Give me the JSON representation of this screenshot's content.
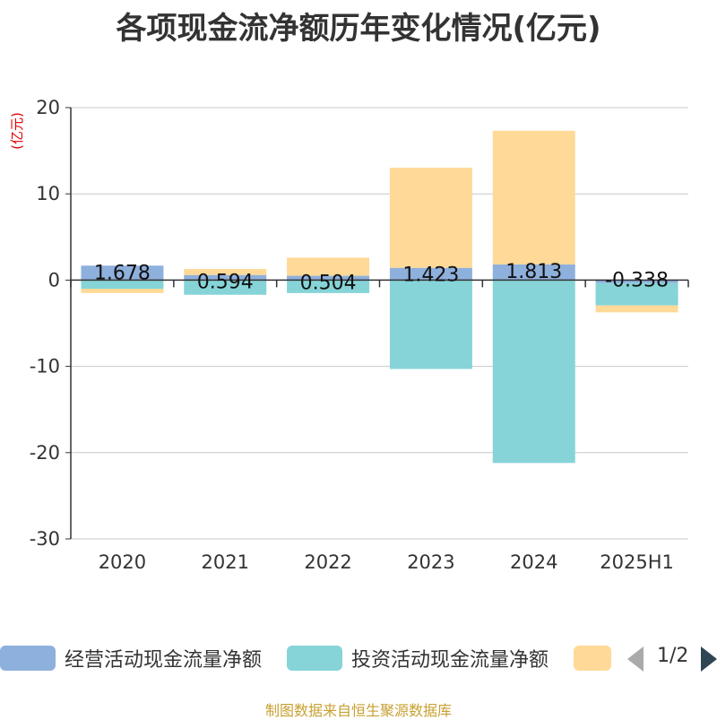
{
  "chart_data": {
    "type": "bar",
    "title": "各项现金流净额历年变化情况(亿元)",
    "ylabel": "(亿元)",
    "ylim": [
      -30,
      20
    ],
    "yticks": [
      "20",
      "10",
      "0",
      "-10",
      "-20",
      "-30"
    ],
    "categories": [
      "2020",
      "2021",
      "2022",
      "2023",
      "2024",
      "2025H1"
    ],
    "stacked": true,
    "grid": true,
    "legend_position": "bottom",
    "series": [
      {
        "name": "经营活动现金流量净额",
        "color": "#8eb0dc",
        "values": [
          1.678,
          0.594,
          0.504,
          1.423,
          1.813,
          -0.338
        ],
        "labels": [
          "1.678",
          "0.594",
          "0.504",
          "1.423",
          "1.813",
          "-0.338"
        ]
      },
      {
        "name": "投资活动现金流量净额",
        "color": "#86d4d8",
        "values": [
          -1.0,
          -1.7,
          -1.5,
          -10.3,
          -21.2,
          -2.6
        ]
      },
      {
        "name": "",
        "color": "#ffd997",
        "values": [
          -0.5,
          0.7,
          2.1,
          11.6,
          15.5,
          -0.8
        ]
      }
    ]
  },
  "legend": {
    "page_indicator": "1/2"
  },
  "footer": {
    "source_note": "制图数据来自恒生聚源数据库"
  }
}
